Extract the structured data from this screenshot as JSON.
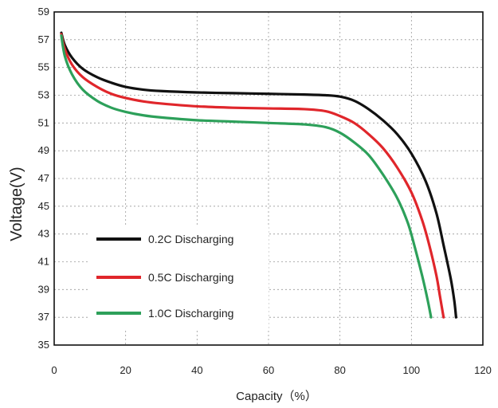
{
  "chart_data": {
    "type": "line",
    "xlabel": "Capacity（%）",
    "ylabel": "Voltage(V)",
    "xlim": [
      0,
      120
    ],
    "ylim": [
      35,
      59
    ],
    "xticks": [
      "0",
      "20",
      "40",
      "60",
      "80",
      "100",
      "120"
    ],
    "yticks": [
      "35",
      "37",
      "39",
      "41",
      "43",
      "45",
      "47",
      "49",
      "51",
      "53",
      "55",
      "57",
      "59"
    ],
    "grid": true,
    "legend_position": "bottom-left",
    "series": [
      {
        "name": "0.2C Discharging",
        "color": "#111111",
        "points": [
          [
            2,
            57.5
          ],
          [
            3,
            56.6
          ],
          [
            5,
            55.7
          ],
          [
            8,
            54.9
          ],
          [
            12,
            54.3
          ],
          [
            16,
            53.9
          ],
          [
            20,
            53.6
          ],
          [
            25,
            53.4
          ],
          [
            30,
            53.3
          ],
          [
            40,
            53.2
          ],
          [
            50,
            53.15
          ],
          [
            60,
            53.1
          ],
          [
            70,
            53.05
          ],
          [
            76,
            53.0
          ],
          [
            80,
            52.9
          ],
          [
            84,
            52.6
          ],
          [
            88,
            52.0
          ],
          [
            92,
            51.2
          ],
          [
            96,
            50.2
          ],
          [
            100,
            48.8
          ],
          [
            104,
            46.8
          ],
          [
            107,
            44.5
          ],
          [
            109,
            42.2
          ],
          [
            111,
            39.8
          ],
          [
            112,
            38.2
          ],
          [
            112.5,
            37.0
          ]
        ]
      },
      {
        "name": "0.5C Discharging",
        "color": "#e0262b",
        "points": [
          [
            2,
            57.4
          ],
          [
            3,
            56.3
          ],
          [
            5,
            55.2
          ],
          [
            8,
            54.3
          ],
          [
            12,
            53.6
          ],
          [
            16,
            53.1
          ],
          [
            20,
            52.8
          ],
          [
            25,
            52.55
          ],
          [
            30,
            52.4
          ],
          [
            40,
            52.2
          ],
          [
            50,
            52.1
          ],
          [
            60,
            52.05
          ],
          [
            70,
            52.0
          ],
          [
            76,
            51.85
          ],
          [
            80,
            51.5
          ],
          [
            84,
            51.0
          ],
          [
            88,
            50.2
          ],
          [
            92,
            49.2
          ],
          [
            96,
            47.8
          ],
          [
            100,
            46.0
          ],
          [
            103,
            44.0
          ],
          [
            105,
            42.2
          ],
          [
            107,
            40.0
          ],
          [
            108,
            38.5
          ],
          [
            109,
            37.0
          ]
        ]
      },
      {
        "name": "1.0C Discharging",
        "color": "#2da05a",
        "points": [
          [
            2,
            57.3
          ],
          [
            3,
            55.8
          ],
          [
            5,
            54.5
          ],
          [
            8,
            53.4
          ],
          [
            12,
            52.6
          ],
          [
            16,
            52.1
          ],
          [
            20,
            51.8
          ],
          [
            25,
            51.55
          ],
          [
            30,
            51.4
          ],
          [
            40,
            51.2
          ],
          [
            50,
            51.1
          ],
          [
            60,
            51.0
          ],
          [
            70,
            50.9
          ],
          [
            76,
            50.7
          ],
          [
            80,
            50.3
          ],
          [
            84,
            49.6
          ],
          [
            88,
            48.7
          ],
          [
            92,
            47.3
          ],
          [
            96,
            45.6
          ],
          [
            99,
            43.8
          ],
          [
            101,
            42.0
          ],
          [
            103,
            40.0
          ],
          [
            104.5,
            38.3
          ],
          [
            105.5,
            37.0
          ]
        ]
      }
    ]
  }
}
